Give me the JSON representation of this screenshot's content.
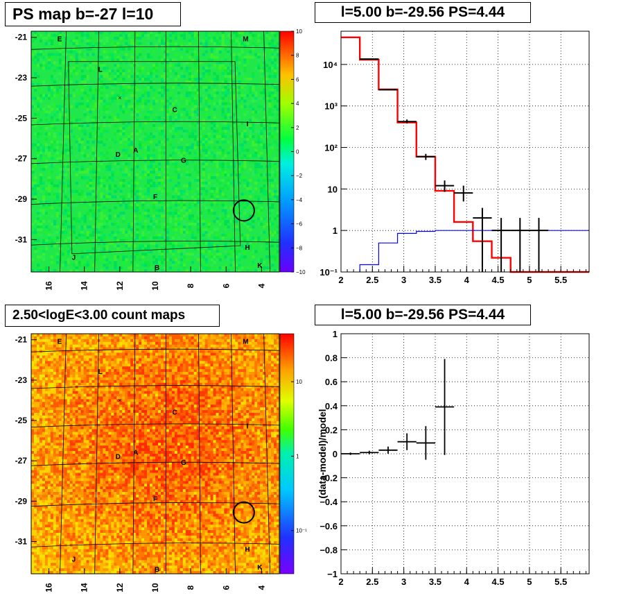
{
  "panels": {
    "ps_map_title": "PS map b=-27 l=10",
    "spectrum_title": "l=5.00 b=-29.56 PS=4.44",
    "count_map_title": "2.50<logE<3.00 count maps",
    "residual_title": "l=5.00 b=-29.56 PS=4.44"
  },
  "chart_data": [
    {
      "type": "heatmap",
      "name": "ps-map",
      "title": "PS map b=-27 l=10",
      "xlabel": "",
      "ylabel": "",
      "xlim": [
        17,
        3
      ],
      "ylim": [
        -32.6,
        -20.7
      ],
      "x_ticks": [
        "16",
        "14",
        "12",
        "10",
        "8",
        "6",
        "4"
      ],
      "y_ticks": [
        "-21",
        "-23",
        "-25",
        "-27",
        "-29",
        "-31"
      ],
      "colorbar": {
        "min": -10,
        "max": 10,
        "ticks": [
          "10",
          "8",
          "6",
          "4",
          "2",
          "0",
          "−2",
          "−4",
          "−6",
          "−8",
          "−10"
        ]
      },
      "value_range": [
        -1,
        1
      ],
      "markers": [
        {
          "label": "E",
          "l": 15.4,
          "b": -21.2
        },
        {
          "label": "M",
          "l": 4.9,
          "b": -21.2
        },
        {
          "label": "L",
          "l": 13.1,
          "b": -22.7
        },
        {
          "label": "C",
          "l": 8.9,
          "b": -24.7
        },
        {
          "label": "I",
          "l": 4.8,
          "b": -25.4
        },
        {
          "label": "D",
          "l": 12.1,
          "b": -26.9
        },
        {
          "label": "A",
          "l": 11.1,
          "b": -26.7
        },
        {
          "label": "G",
          "l": 8.4,
          "b": -27.2
        },
        {
          "label": "F",
          "l": 10.0,
          "b": -29.0
        },
        {
          "label": "H",
          "l": 4.8,
          "b": -31.5
        },
        {
          "label": "J",
          "l": 14.6,
          "b": -32.0
        },
        {
          "label": "B",
          "l": 9.9,
          "b": -32.5
        },
        {
          "label": "K",
          "l": 4.1,
          "b": -32.4
        }
      ],
      "source_circle": {
        "l": 5.0,
        "b": -29.56
      }
    },
    {
      "type": "line",
      "name": "spectrum",
      "title": "l=5.00 b=-29.56 PS=4.44",
      "xlabel": "",
      "ylabel": "",
      "xlim": [
        2,
        5.95
      ],
      "ylim_log10": [
        -1,
        4.8
      ],
      "log_y": true,
      "x_ticks": [
        "2",
        "2.5",
        "3",
        "3.5",
        "4",
        "4.5",
        "5",
        "5.5"
      ],
      "y_ticks": [
        "10⁻¹",
        "1",
        "10",
        "10²",
        "10³",
        "10⁴"
      ],
      "series": [
        {
          "color": "#ff0000",
          "bins": [
            [
              2.0,
              2.3,
              45000
            ],
            [
              2.3,
              2.6,
              13000
            ],
            [
              2.6,
              2.9,
              2500
            ],
            [
              2.9,
              3.2,
              400
            ],
            [
              3.2,
              3.5,
              60
            ],
            [
              3.5,
              3.8,
              9
            ],
            [
              3.8,
              4.1,
              1.6
            ],
            [
              4.1,
              4.4,
              0.55
            ],
            [
              4.4,
              4.7,
              0.22
            ],
            [
              4.7,
              5.0,
              0.1
            ],
            [
              5.0,
              5.95,
              0.1
            ]
          ]
        },
        {
          "color": "#0000ff",
          "bins": [
            [
              2.3,
              2.6,
              0.15
            ],
            [
              2.6,
              2.9,
              0.5
            ],
            [
              2.9,
              3.2,
              0.85
            ],
            [
              3.2,
              3.5,
              0.95
            ],
            [
              3.5,
              3.8,
              1.0
            ],
            [
              3.8,
              4.1,
              1.0
            ],
            [
              4.1,
              4.4,
              1.0
            ],
            [
              4.4,
              4.7,
              1.0
            ],
            [
              4.7,
              5.0,
              1.0
            ],
            [
              5.0,
              5.95,
              1.0
            ]
          ]
        }
      ],
      "points": [
        {
          "x": 2.45,
          "y": 13500,
          "xerr": 0.15
        },
        {
          "x": 2.75,
          "y": 2450,
          "xerr": 0.15
        },
        {
          "x": 3.05,
          "y": 420,
          "xerr": 0.15,
          "ylo": 380,
          "yhi": 470
        },
        {
          "x": 3.35,
          "y": 60,
          "xerr": 0.15,
          "ylo": 50,
          "yhi": 70
        },
        {
          "x": 3.65,
          "y": 12,
          "xerr": 0.15,
          "ylo": 8.5,
          "yhi": 16
        },
        {
          "x": 3.95,
          "y": 8,
          "xerr": 0.15,
          "ylo": 5,
          "yhi": 12
        },
        {
          "x": 4.25,
          "y": 2,
          "xerr": 0.15,
          "ylo": 0.1,
          "yhi": 3.5
        },
        {
          "x": 4.55,
          "y": 1,
          "xerr": 0.15,
          "ylo": 0.1,
          "yhi": 2
        },
        {
          "x": 4.85,
          "y": 1,
          "xerr": 0.15,
          "ylo": 0.1,
          "yhi": 2
        },
        {
          "x": 5.15,
          "y": 1,
          "xerr": 0.15,
          "ylo": 0.1,
          "yhi": 2
        }
      ],
      "grid": true
    },
    {
      "type": "heatmap",
      "name": "count-map",
      "title": "2.50<logE<3.00 count maps",
      "xlabel": "",
      "ylabel": "",
      "xlim": [
        17,
        3
      ],
      "ylim": [
        -32.6,
        -20.7
      ],
      "x_ticks": [
        "16",
        "14",
        "12",
        "10",
        "8",
        "6",
        "4"
      ],
      "y_ticks": [
        "-21",
        "-23",
        "-25",
        "-27",
        "-29",
        "-31"
      ],
      "colorbar": {
        "log": true,
        "ticks": [
          "10",
          "1",
          "10⁻¹"
        ]
      },
      "markers": [
        {
          "label": "E",
          "l": 15.4,
          "b": -21.2
        },
        {
          "label": "M",
          "l": 4.9,
          "b": -21.2
        },
        {
          "label": "L",
          "l": 13.1,
          "b": -22.7
        },
        {
          "label": "C",
          "l": 8.9,
          "b": -24.7
        },
        {
          "label": "I",
          "l": 4.8,
          "b": -25.4
        },
        {
          "label": "D",
          "l": 12.1,
          "b": -26.9
        },
        {
          "label": "A",
          "l": 11.1,
          "b": -26.7
        },
        {
          "label": "G",
          "l": 8.4,
          "b": -27.2
        },
        {
          "label": "F",
          "l": 10.0,
          "b": -29.0
        },
        {
          "label": "H",
          "l": 4.8,
          "b": -31.5
        },
        {
          "label": "J",
          "l": 14.6,
          "b": -32.0
        },
        {
          "label": "B",
          "l": 9.9,
          "b": -32.5
        },
        {
          "label": "K",
          "l": 4.1,
          "b": -32.4
        }
      ],
      "source_circle": {
        "l": 5.0,
        "b": -29.56
      }
    },
    {
      "type": "scatter",
      "name": "residual",
      "title": "l=5.00 b=-29.56 PS=4.44",
      "xlabel": "",
      "ylabel": "(data-model)/model",
      "xlim": [
        2,
        5.95
      ],
      "ylim": [
        -1,
        1
      ],
      "x_ticks": [
        "2",
        "2.5",
        "3",
        "3.5",
        "4",
        "4.5",
        "5",
        "5.5"
      ],
      "y_ticks": [
        "−1",
        "−0.8",
        "−0.6",
        "−0.4",
        "−0.2",
        "0",
        "0.2",
        "0.4",
        "0.6",
        "0.8",
        "1"
      ],
      "points": [
        {
          "x": 2.15,
          "y": 0.0,
          "xerr": 0.15,
          "yerr": 0.01
        },
        {
          "x": 2.45,
          "y": 0.01,
          "xerr": 0.15,
          "yerr": 0.015
        },
        {
          "x": 2.75,
          "y": 0.03,
          "xerr": 0.15,
          "yerr": 0.03
        },
        {
          "x": 3.05,
          "y": 0.1,
          "xerr": 0.15,
          "yerr": 0.07
        },
        {
          "x": 3.35,
          "y": 0.09,
          "xerr": 0.15,
          "yerr": 0.14
        },
        {
          "x": 3.65,
          "y": 0.39,
          "xerr": 0.15,
          "yerr": 0.4
        }
      ],
      "grid": true
    }
  ]
}
